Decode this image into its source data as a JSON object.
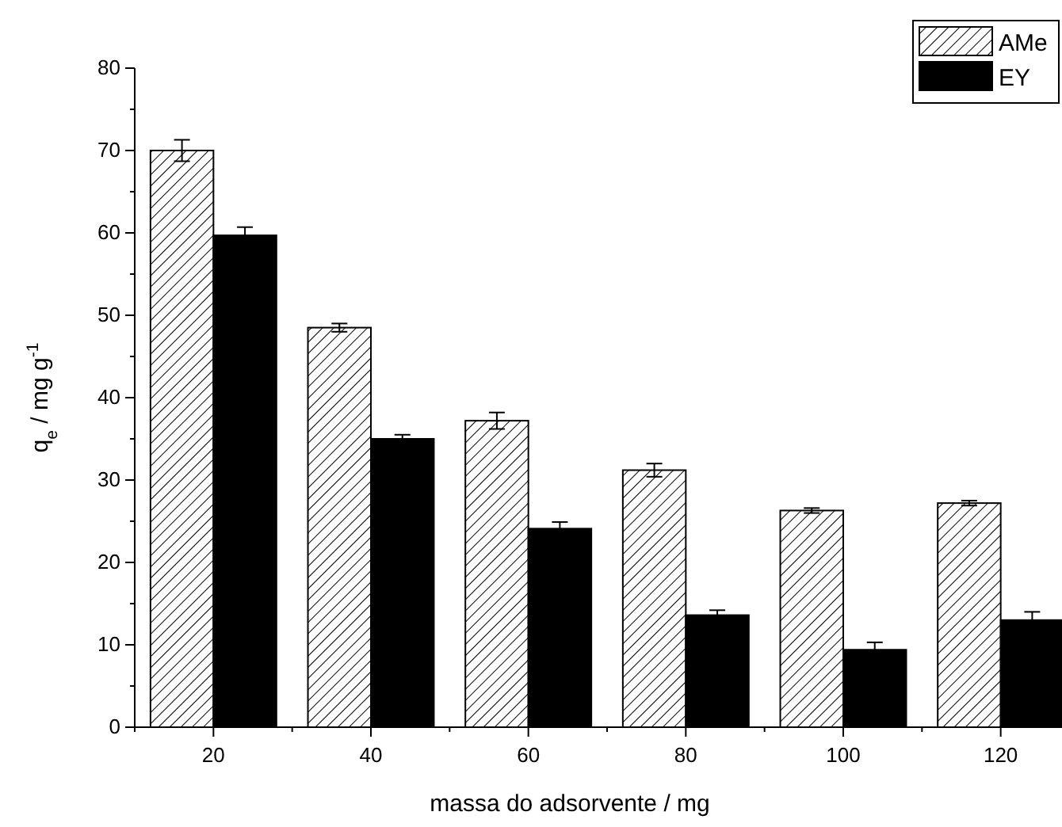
{
  "chart_data": {
    "type": "bar",
    "xlabel": "massa do adsorvente / mg",
    "ylabel": "q$_{e}$ / mg g$^{-1}$",
    "categories": [
      "20",
      "40",
      "60",
      "80",
      "100",
      "120"
    ],
    "series": [
      {
        "name": "AMe",
        "color": "#000000",
        "values": [
          70,
          48.5,
          37.2,
          31.2,
          26.3,
          27.2
        ],
        "errors": [
          1.3,
          0.5,
          1,
          0.8,
          0.3,
          0.3
        ]
      },
      {
        "name": "EY",
        "color": "#000000",
        "values": [
          59.7,
          35,
          24.1,
          13.6,
          9.4,
          13
        ],
        "errors": [
          1,
          0.5,
          0.8,
          0.6,
          0.9,
          1
        ]
      }
    ],
    "ylim": [
      0,
      80
    ],
    "yticks": [
      0,
      {
        "value": 5,
        "label": null
      },
      10,
      {
        "value": 15,
        "label": null
      },
      20,
      {
        "value": 25,
        "label": null
      },
      30,
      {
        "value": 35,
        "label": null
      },
      40,
      {
        "value": 45,
        "label": null
      },
      50,
      {
        "value": 55,
        "label": null
      },
      60,
      {
        "value": 65,
        "label": null
      },
      70,
      {
        "value": 75,
        "label": null
      },
      80
    ],
    "grid": false,
    "legend": "top right"
  }
}
